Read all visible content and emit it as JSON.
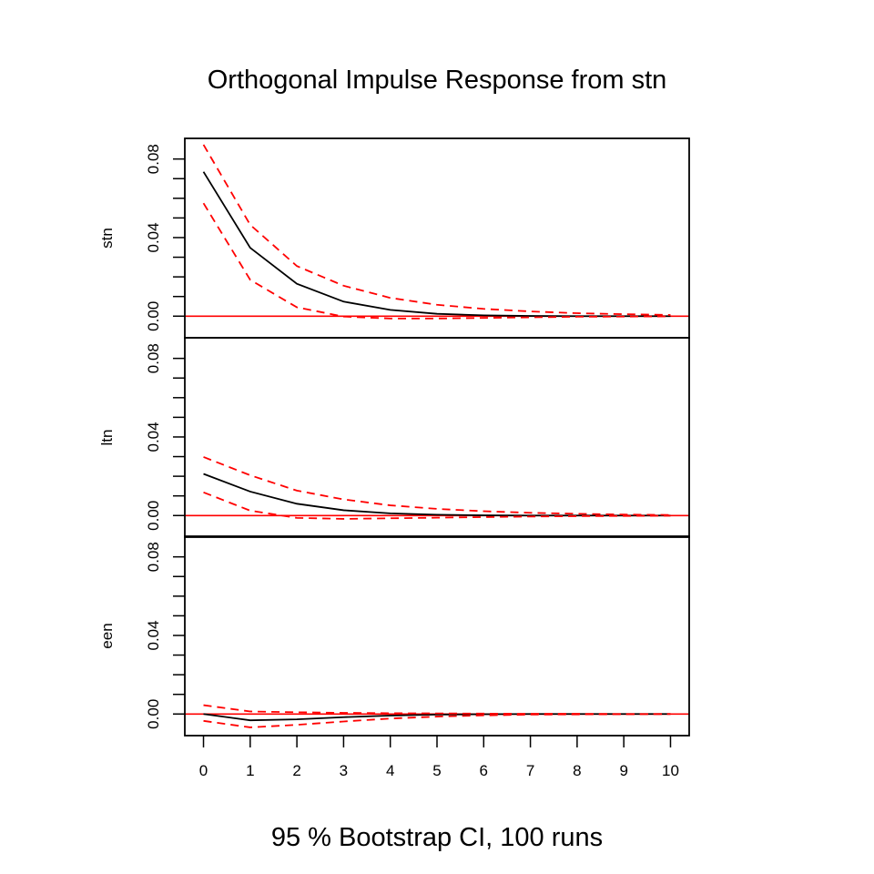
{
  "chart_data": {
    "type": "line",
    "title": "Orthogonal Impulse Response from stn",
    "caption": "95 % Bootstrap CI,  100 runs",
    "x": [
      0,
      1,
      2,
      3,
      4,
      5,
      6,
      7,
      8,
      9,
      10
    ],
    "x_tick_labels": [
      "0",
      "1",
      "2",
      "3",
      "4",
      "5",
      "6",
      "7",
      "8",
      "9",
      "10"
    ],
    "xlim": [
      -0.4,
      10.4
    ],
    "y_tick_labels": [
      "0.00",
      "0.04",
      "0.08"
    ],
    "ylim": [
      -0.011,
      0.0905
    ],
    "zero_line": true,
    "colors": {
      "response": "#000000",
      "ci": "#ff0000",
      "zero": "#ff0000"
    },
    "panels": [
      {
        "ylabel": "stn",
        "series": [
          {
            "role": "response",
            "values": [
              0.0735,
              0.0348,
              0.0165,
              0.0074,
              0.0032,
              0.0012,
              0.0004,
              0.0001,
              0.0,
              0.0,
              0.0
            ]
          },
          {
            "role": "upper",
            "values": [
              0.0873,
              0.0465,
              0.0255,
              0.0155,
              0.0093,
              0.0058,
              0.0037,
              0.0024,
              0.0015,
              0.001,
              0.0006
            ]
          },
          {
            "role": "lower",
            "values": [
              0.0575,
              0.0185,
              0.0045,
              -0.0002,
              -0.0012,
              -0.0012,
              -0.0009,
              -0.0006,
              -0.0003,
              -0.0002,
              -0.0001
            ]
          }
        ]
      },
      {
        "ylabel": "ltn",
        "series": [
          {
            "role": "response",
            "values": [
              0.0212,
              0.0122,
              0.006,
              0.0027,
              0.0011,
              0.0004,
              0.0001,
              0.0,
              0.0,
              0.0,
              0.0
            ]
          },
          {
            "role": "upper",
            "values": [
              0.0298,
              0.0205,
              0.0127,
              0.0082,
              0.0052,
              0.0034,
              0.0022,
              0.0014,
              0.0009,
              0.0005,
              0.0003
            ]
          },
          {
            "role": "lower",
            "values": [
              0.0118,
              0.0025,
              -0.0012,
              -0.0017,
              -0.0014,
              -0.0011,
              -0.0008,
              -0.0005,
              -0.0003,
              -0.0002,
              -0.0001
            ]
          }
        ]
      },
      {
        "ylabel": "een",
        "series": [
          {
            "role": "response",
            "values": [
              0.0,
              -0.0032,
              -0.0027,
              -0.0016,
              -0.0008,
              -0.0003,
              -0.0001,
              0.0,
              0.0,
              0.0,
              0.0
            ]
          },
          {
            "role": "upper",
            "values": [
              0.0045,
              0.0013,
              0.0009,
              0.0006,
              0.0004,
              0.0003,
              0.0002,
              0.0001,
              0.0001,
              0.0,
              0.0
            ]
          },
          {
            "role": "lower",
            "values": [
              -0.0035,
              -0.0068,
              -0.0055,
              -0.0038,
              -0.0023,
              -0.0013,
              -0.0007,
              -0.0003,
              -0.0002,
              -0.0001,
              0.0
            ]
          }
        ]
      }
    ]
  }
}
